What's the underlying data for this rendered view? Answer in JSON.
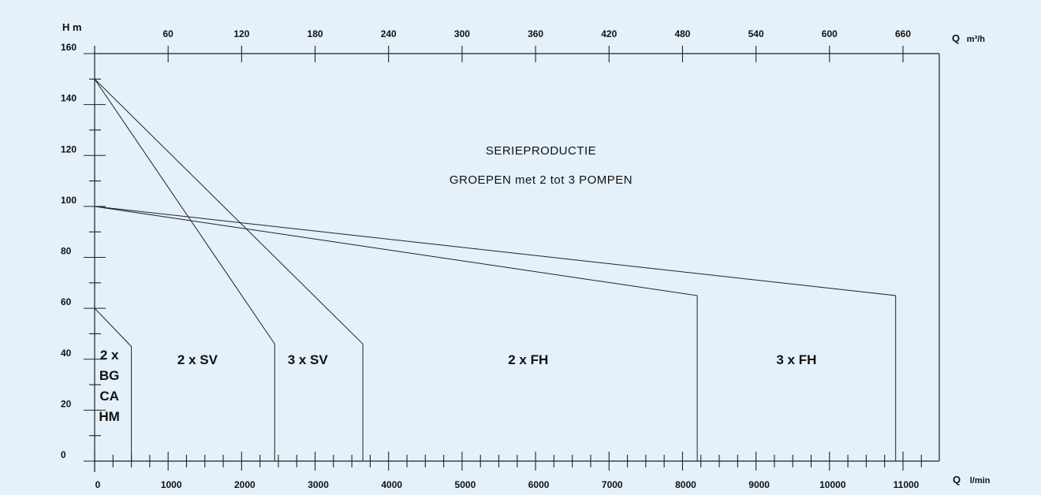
{
  "chart_data": {
    "type": "line",
    "title": "SERIEPRODUCTIE",
    "subtitle": "GROEPEN met 2 tot 3 POMPEN",
    "ylabel": "H m",
    "xlabel": "Q",
    "xlabel_unit": "l/min",
    "x2label": "Q",
    "x2label_unit": "m³/h",
    "ylim": [
      0,
      160
    ],
    "xlim": [
      0,
      11500
    ],
    "y_ticks": [
      0,
      20,
      40,
      60,
      80,
      100,
      120,
      140,
      160
    ],
    "x_ticks": [
      0,
      1000,
      2000,
      3000,
      4000,
      5000,
      6000,
      7000,
      8000,
      9000,
      10000,
      11000
    ],
    "x2_ticks": [
      60,
      120,
      180,
      240,
      300,
      360,
      420,
      480,
      540,
      600,
      660
    ],
    "grid": false,
    "series": [
      {
        "name": "2 x BG CA HM",
        "points": [
          [
            0,
            60
          ],
          [
            500,
            45
          ],
          [
            500,
            0
          ]
        ]
      },
      {
        "name": "2 x SV",
        "points": [
          [
            0,
            150
          ],
          [
            2450,
            46
          ],
          [
            2450,
            0
          ]
        ]
      },
      {
        "name": "3 x SV",
        "points": [
          [
            0,
            150
          ],
          [
            3650,
            46
          ],
          [
            3650,
            0
          ]
        ]
      },
      {
        "name": "2 x FH",
        "points": [
          [
            0,
            100
          ],
          [
            8200,
            65
          ],
          [
            8200,
            0
          ]
        ]
      },
      {
        "name": "3 x FH",
        "points": [
          [
            0,
            100
          ],
          [
            10900,
            65
          ],
          [
            10900,
            0
          ]
        ]
      }
    ],
    "region_labels": [
      {
        "lines": [
          "2 x",
          "BG",
          "CA",
          "HM"
        ],
        "x": 200,
        "y": 40
      },
      {
        "lines": [
          "2 x SV"
        ],
        "x": 1400,
        "y": 38
      },
      {
        "lines": [
          "3 x SV"
        ],
        "x": 2900,
        "y": 38
      },
      {
        "lines": [
          "2 x FH"
        ],
        "x": 5900,
        "y": 38
      },
      {
        "lines": [
          "3 x FH"
        ],
        "x": 9550,
        "y": 38
      }
    ]
  }
}
